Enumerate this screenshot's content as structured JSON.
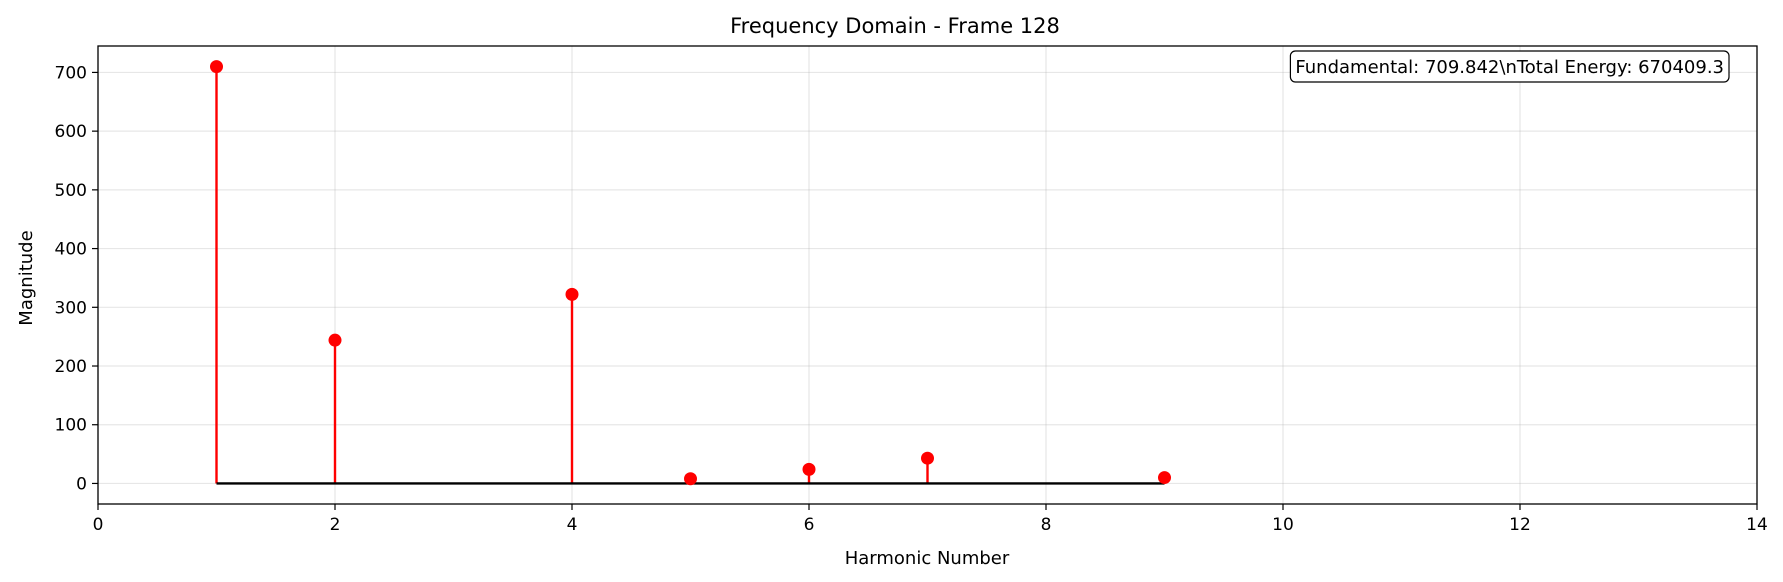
{
  "chart_data": {
    "type": "stem",
    "title": "Frequency Domain - Frame 128",
    "xlabel": "Harmonic Number",
    "ylabel": "Magnitude",
    "xlim": [
      0,
      14
    ],
    "ylim": [
      -35,
      745
    ],
    "xticks": [
      0,
      2,
      4,
      6,
      8,
      10,
      12,
      14
    ],
    "yticks": [
      0,
      100,
      200,
      300,
      400,
      500,
      600,
      700
    ],
    "grid": true,
    "series": [
      {
        "x": [
          1,
          2,
          4,
          5,
          6,
          7,
          9
        ],
        "values": [
          709.842,
          244,
          322,
          8,
          24,
          43,
          10
        ],
        "color": "#ff0000"
      }
    ],
    "baseline": {
      "y": 0,
      "x_from": 1,
      "x_to": 9,
      "color": "#000000"
    },
    "annotation": {
      "text": "Fundamental: 709.842\\nTotal Energy: 670409.3",
      "placement": "top-right"
    }
  }
}
